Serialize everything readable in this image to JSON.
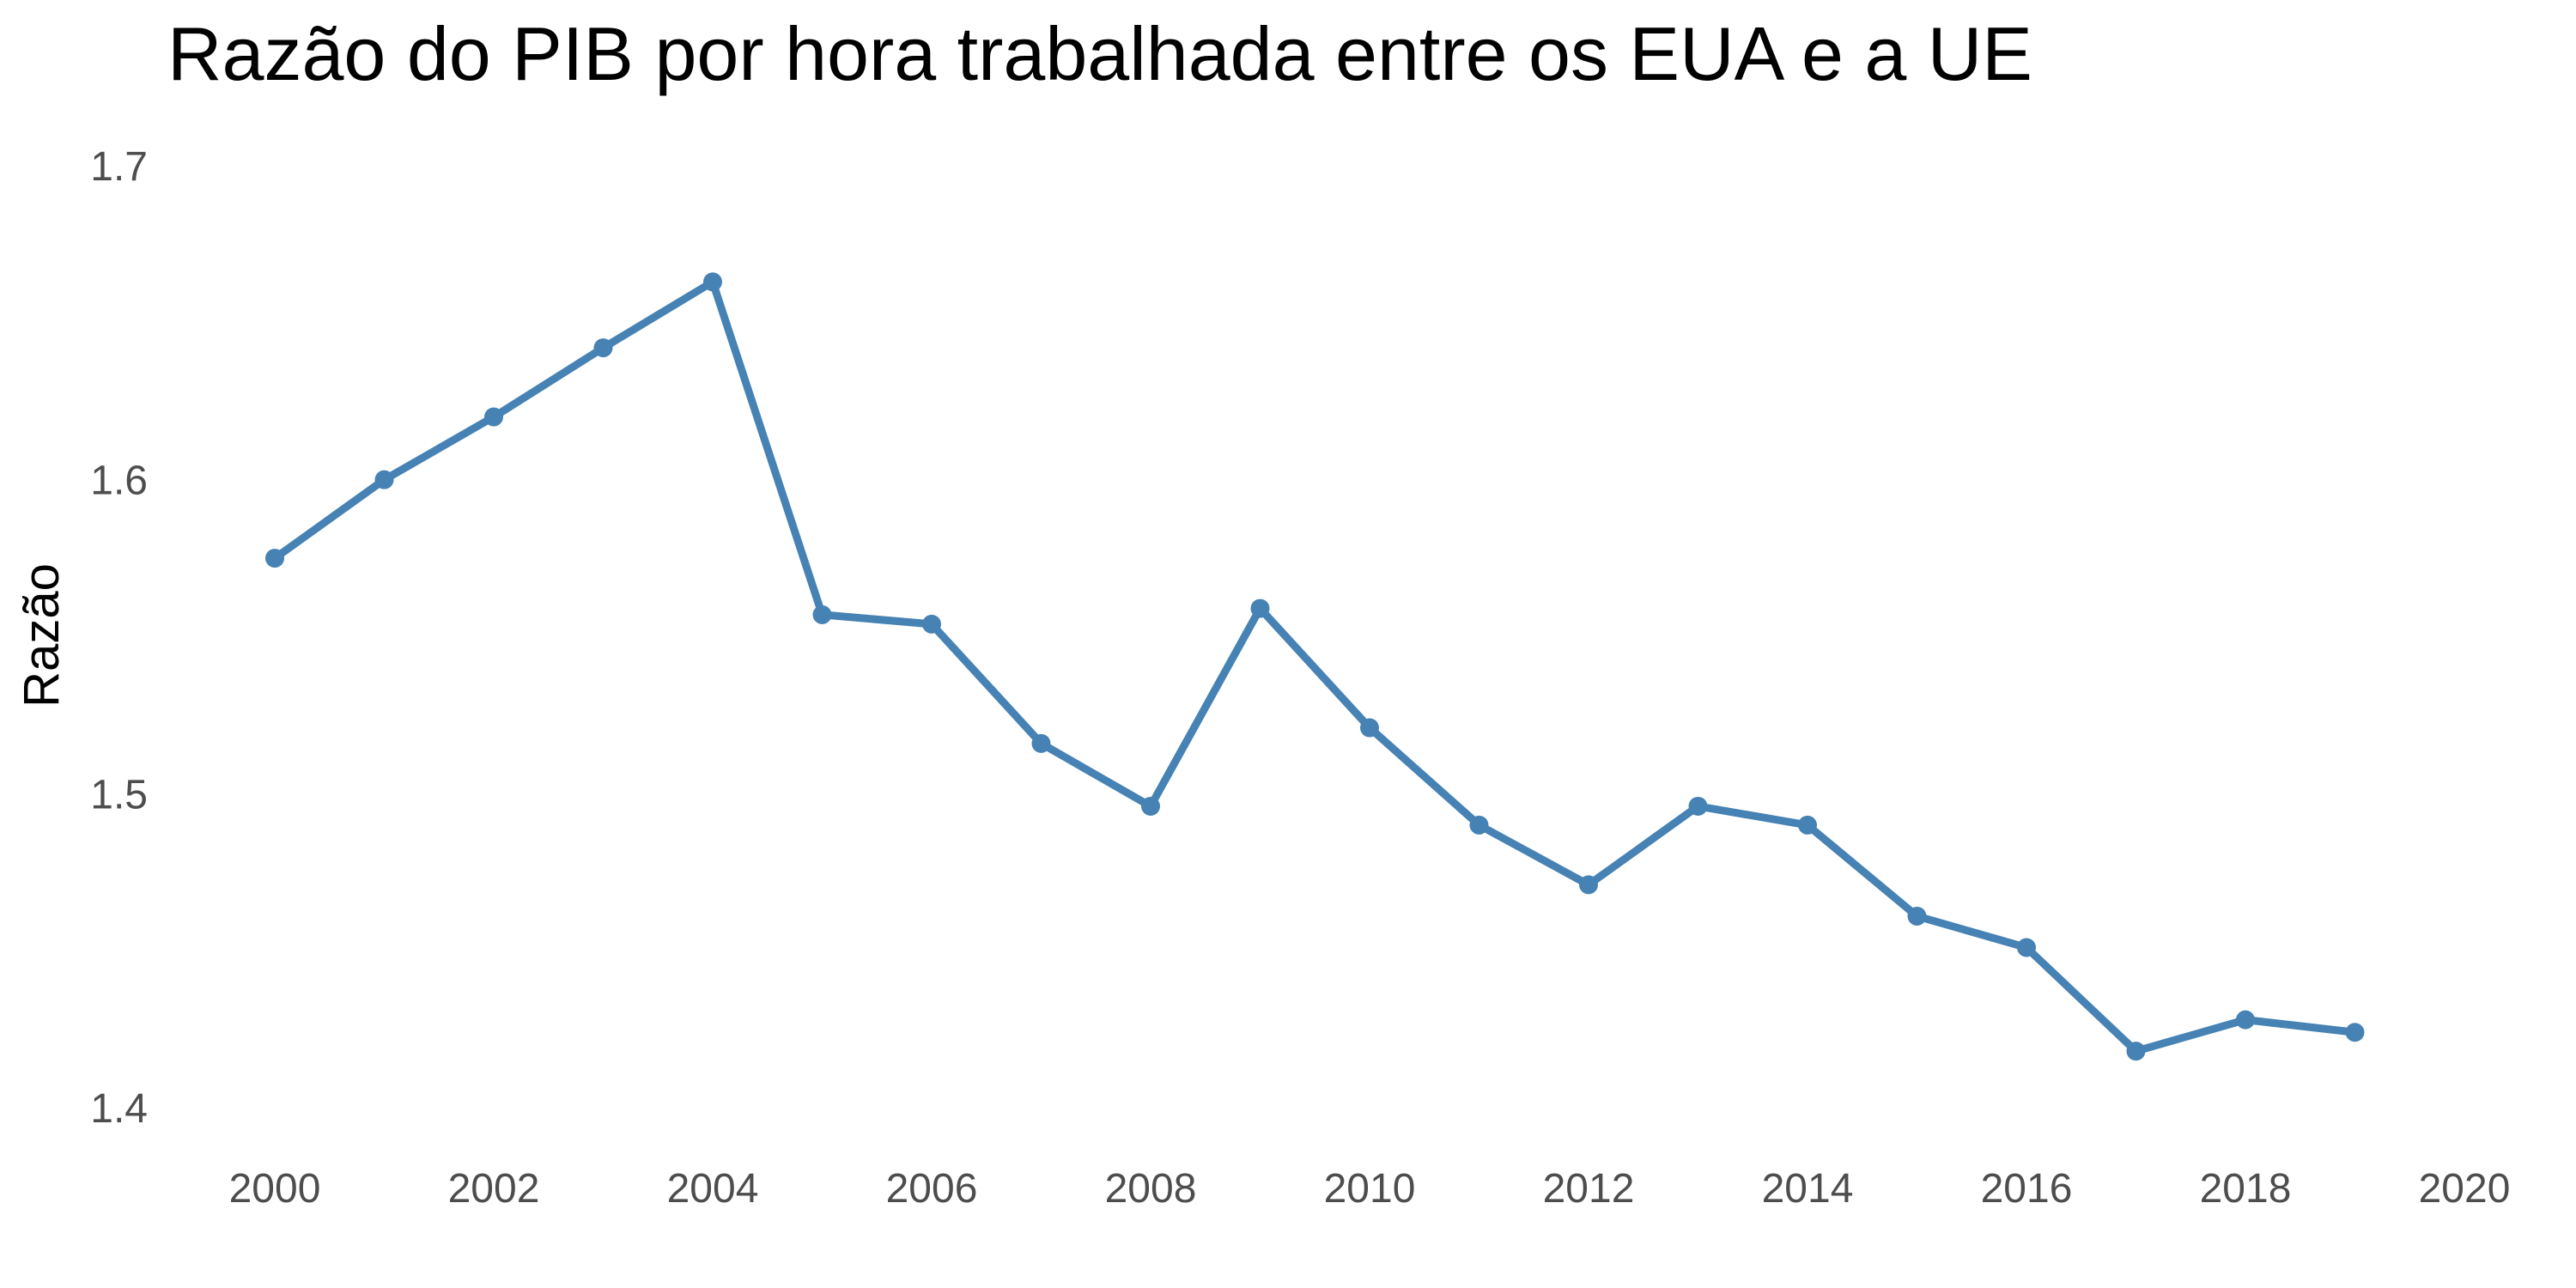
{
  "chart_data": {
    "type": "line",
    "title": "Razão do PIB por hora trabalhada entre os EUA e a UE",
    "xlabel": "",
    "ylabel": "Razão",
    "x": [
      2000,
      2001,
      2002,
      2003,
      2004,
      2005,
      2006,
      2007,
      2008,
      2009,
      2010,
      2011,
      2012,
      2013,
      2014,
      2015,
      2016,
      2017,
      2018,
      2019
    ],
    "series": [
      {
        "values": [
          1.575,
          1.6,
          1.62,
          1.642,
          1.663,
          1.557,
          1.554,
          1.516,
          1.496,
          1.559,
          1.521,
          1.49,
          1.471,
          1.496,
          1.49,
          1.461,
          1.451,
          1.418,
          1.428,
          1.424
        ],
        "color": "#4682B4"
      }
    ],
    "xlim": [
      2000,
      2020
    ],
    "ylim": [
      1.4,
      1.7
    ],
    "xticks": [
      "2000",
      "2002",
      "2004",
      "2006",
      "2008",
      "2010",
      "2012",
      "2014",
      "2016",
      "2018",
      "2020"
    ],
    "yticks": [
      "1.4",
      "1.5",
      "1.6",
      "1.7"
    ],
    "grid": false,
    "legend": "none"
  }
}
